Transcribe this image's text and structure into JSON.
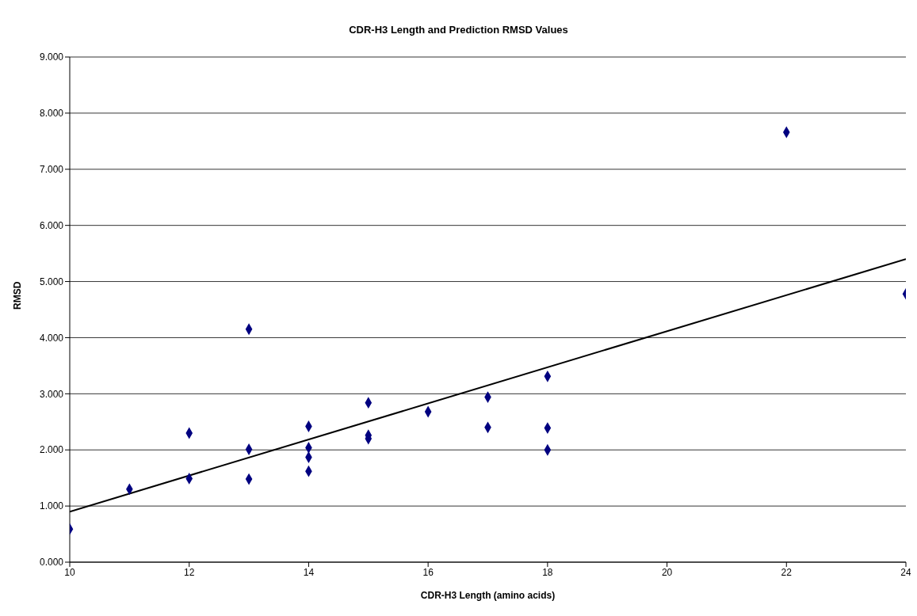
{
  "chart_data": {
    "type": "scatter",
    "title": "CDR-H3 Length and Prediction RMSD Values",
    "xlabel": "CDR-H3 Length (amino acids)",
    "ylabel": "RMSD",
    "xlim": [
      10,
      24
    ],
    "xticks": [
      10,
      12,
      14,
      16,
      18,
      20,
      22,
      24
    ],
    "ylim": [
      0,
      9
    ],
    "yticks": [
      {
        "value": 0,
        "label": "0.000"
      },
      {
        "value": 1,
        "label": "1.000"
      },
      {
        "value": 2,
        "label": "2.000"
      },
      {
        "value": 3,
        "label": "3.000"
      },
      {
        "value": 4,
        "label": "4.000"
      },
      {
        "value": 5,
        "label": "5.000"
      },
      {
        "value": 6,
        "label": "6.000"
      },
      {
        "value": 7,
        "label": "7.000"
      },
      {
        "value": 8,
        "label": "8.000"
      },
      {
        "value": 9,
        "label": "9.000"
      }
    ],
    "grid": "y",
    "marker": "diamond",
    "series": [
      {
        "color": "#000080",
        "x": [
          10,
          11,
          12,
          12,
          13,
          13,
          13,
          14,
          14,
          14,
          14,
          15,
          15,
          15,
          16,
          17,
          17,
          18,
          18,
          18,
          22,
          24
        ],
        "values": [
          0.59,
          1.3,
          1.49,
          2.3,
          4.15,
          2.01,
          1.48,
          2.42,
          2.04,
          1.87,
          1.62,
          2.84,
          2.26,
          2.2,
          2.68,
          2.94,
          2.4,
          3.31,
          2.39,
          2.0,
          7.66,
          4.78
        ]
      },
      {
        "type": "line",
        "color": "#000000",
        "line_style": "solid",
        "marker": "none",
        "x": [
          10,
          24
        ],
        "values": [
          0.9,
          5.4
        ]
      }
    ]
  }
}
